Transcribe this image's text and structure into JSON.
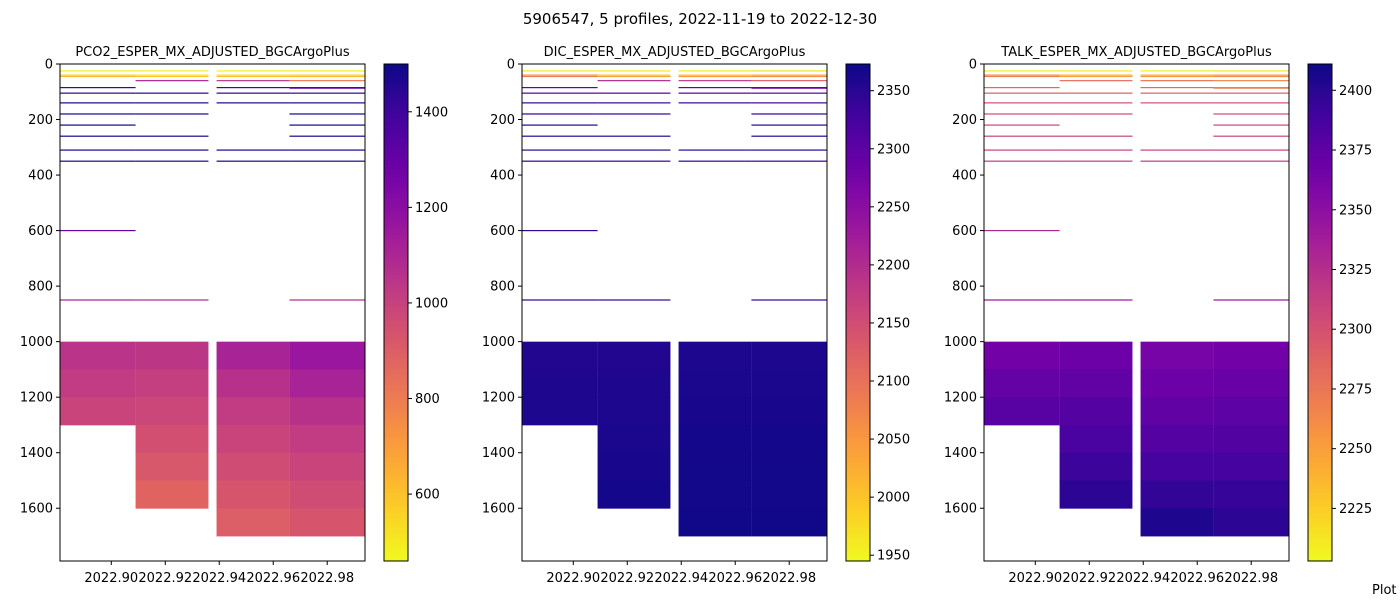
{
  "suptitle": "5906547, 5 profiles, 2022-11-19 to 2022-12-30",
  "footer_text": "Plot",
  "chart_data": [
    {
      "type": "heatmap",
      "title": "PCO2_ESPER_MX_ADJUSTED_BGCArgoPlus",
      "xlabel": "",
      "ylabel": "",
      "colormap": "plasma_r",
      "clim": [
        460,
        1500
      ],
      "colorbar_ticks": [
        600,
        800,
        1000,
        1200,
        1400
      ],
      "xlim": [
        2022.881,
        2022.994
      ],
      "ylim": [
        1790,
        0
      ],
      "xticks": [
        2022.9,
        2022.92,
        2022.94,
        2022.96,
        2022.98
      ],
      "xtick_labels": [
        "2022.90",
        "2022.92",
        "2022.94",
        "2022.96",
        "2022.98"
      ],
      "yticks": [
        0,
        200,
        400,
        600,
        800,
        1000,
        1200,
        1400,
        1600
      ],
      "profiles": [
        {
          "x0": 2022.881,
          "x1": 2022.909
        },
        {
          "x0": 2022.909,
          "x1": 2022.936
        },
        {
          "x0": 2022.939,
          "x1": 2022.966
        },
        {
          "x0": 2022.966,
          "x1": 2022.994
        }
      ],
      "lines": [
        {
          "depth": 25,
          "values": [
            480,
            482,
            478,
            485
          ]
        },
        {
          "depth": 40,
          "values": [
            560,
            520,
            540,
            560
          ]
        },
        {
          "depth": 45,
          "values": [
            620,
            590,
            600,
            610
          ]
        },
        {
          "depth": 60,
          "values": [
            null,
            1100,
            1050,
            800
          ]
        },
        {
          "depth": 85,
          "values": [
            1400,
            null,
            1350,
            1380
          ]
        },
        {
          "depth": 87,
          "values": [
            null,
            null,
            null,
            1300
          ]
        },
        {
          "depth": 105,
          "values": [
            1450,
            1440,
            1430,
            1420
          ]
        },
        {
          "depth": 140,
          "values": [
            1480,
            1470,
            1470,
            1460
          ]
        },
        {
          "depth": 180,
          "values": [
            1480,
            1480,
            null,
            1480
          ]
        },
        {
          "depth": 220,
          "values": [
            1490,
            null,
            null,
            1490
          ]
        },
        {
          "depth": 260,
          "values": [
            1490,
            1490,
            null,
            1490
          ]
        },
        {
          "depth": 310,
          "values": [
            1480,
            1480,
            1480,
            1480
          ]
        },
        {
          "depth": 350,
          "values": [
            1470,
            1470,
            1470,
            1470
          ]
        },
        {
          "depth": 600,
          "values": [
            1300,
            null,
            null,
            null
          ]
        },
        {
          "depth": 850,
          "values": [
            1120,
            1100,
            null,
            1080
          ]
        }
      ],
      "blocks": [
        {
          "profile": 0,
          "depths": [
            [
              1000,
              1100
            ],
            [
              1100,
              1200
            ],
            [
              1200,
              1300
            ]
          ],
          "values": [
            1050,
            1020,
            990
          ]
        },
        {
          "profile": 1,
          "depths": [
            [
              1000,
              1100
            ],
            [
              1100,
              1200
            ],
            [
              1200,
              1300
            ],
            [
              1300,
              1400
            ],
            [
              1400,
              1500
            ],
            [
              1500,
              1600
            ]
          ],
          "values": [
            1040,
            1010,
            980,
            950,
            920,
            880
          ]
        },
        {
          "profile": 2,
          "depths": [
            [
              1000,
              1100
            ],
            [
              1100,
              1200
            ],
            [
              1200,
              1300
            ],
            [
              1300,
              1400
            ],
            [
              1400,
              1500
            ],
            [
              1500,
              1600
            ],
            [
              1600,
              1700
            ]
          ],
          "values": [
            1110,
            1060,
            1020,
            990,
            960,
            930,
            900
          ]
        },
        {
          "profile": 3,
          "depths": [
            [
              1000,
              1100
            ],
            [
              1100,
              1200
            ],
            [
              1200,
              1300
            ],
            [
              1300,
              1400
            ],
            [
              1400,
              1500
            ],
            [
              1500,
              1600
            ],
            [
              1600,
              1700
            ]
          ],
          "values": [
            1160,
            1110,
            1060,
            1020,
            990,
            960,
            930
          ]
        }
      ]
    },
    {
      "type": "heatmap",
      "title": "DIC_ESPER_MX_ADJUSTED_BGCArgoPlus",
      "xlabel": "",
      "ylabel": "",
      "colormap": "plasma_r",
      "clim": [
        1945,
        2373
      ],
      "colorbar_ticks": [
        1950,
        2000,
        2050,
        2100,
        2150,
        2200,
        2250,
        2300,
        2350
      ],
      "xlim": [
        2022.881,
        2022.994
      ],
      "ylim": [
        1790,
        0
      ],
      "xticks": [
        2022.9,
        2022.92,
        2022.94,
        2022.96,
        2022.98
      ],
      "xtick_labels": [
        "2022.90",
        "2022.92",
        "2022.94",
        "2022.96",
        "2022.98"
      ],
      "yticks": [
        0,
        200,
        400,
        600,
        800,
        1000,
        1200,
        1400,
        1600
      ],
      "profiles": [
        {
          "x0": 2022.881,
          "x1": 2022.909
        },
        {
          "x0": 2022.909,
          "x1": 2022.936
        },
        {
          "x0": 2022.939,
          "x1": 2022.966
        },
        {
          "x0": 2022.966,
          "x1": 2022.994
        }
      ],
      "lines": [
        {
          "depth": 25,
          "values": [
            1960,
            1962,
            1958,
            1965
          ]
        },
        {
          "depth": 40,
          "values": [
            2060,
            2000,
            2010,
            2040
          ]
        },
        {
          "depth": 45,
          "values": [
            2080,
            2040,
            2050,
            2060
          ]
        },
        {
          "depth": 60,
          "values": [
            null,
            2200,
            2180,
            2120
          ]
        },
        {
          "depth": 85,
          "values": [
            2300,
            null,
            2290,
            2300
          ]
        },
        {
          "depth": 87,
          "values": [
            null,
            null,
            null,
            2280
          ]
        },
        {
          "depth": 105,
          "values": [
            2320,
            2320,
            2315,
            2310
          ]
        },
        {
          "depth": 140,
          "values": [
            2340,
            2335,
            2335,
            2330
          ]
        },
        {
          "depth": 180,
          "values": [
            2345,
            2345,
            null,
            2345
          ]
        },
        {
          "depth": 220,
          "values": [
            2350,
            null,
            null,
            2350
          ]
        },
        {
          "depth": 260,
          "values": [
            2352,
            2352,
            null,
            2352
          ]
        },
        {
          "depth": 310,
          "values": [
            2350,
            2350,
            2350,
            2350
          ]
        },
        {
          "depth": 350,
          "values": [
            2348,
            2348,
            2348,
            2348
          ]
        },
        {
          "depth": 600,
          "values": [
            2340,
            null,
            null,
            null
          ]
        },
        {
          "depth": 850,
          "values": [
            2345,
            2345,
            null,
            2345
          ]
        }
      ],
      "blocks": [
        {
          "profile": 0,
          "depths": [
            [
              1000,
              1100
            ],
            [
              1100,
              1200
            ],
            [
              1200,
              1300
            ]
          ],
          "values": [
            2355,
            2358,
            2360
          ]
        },
        {
          "profile": 1,
          "depths": [
            [
              1000,
              1100
            ],
            [
              1100,
              1200
            ],
            [
              1200,
              1300
            ],
            [
              1300,
              1400
            ],
            [
              1400,
              1500
            ],
            [
              1500,
              1600
            ]
          ],
          "values": [
            2355,
            2358,
            2360,
            2362,
            2364,
            2366
          ]
        },
        {
          "profile": 2,
          "depths": [
            [
              1000,
              1100
            ],
            [
              1100,
              1200
            ],
            [
              1200,
              1300
            ],
            [
              1300,
              1400
            ],
            [
              1400,
              1500
            ],
            [
              1500,
              1600
            ],
            [
              1600,
              1700
            ]
          ],
          "values": [
            2360,
            2362,
            2364,
            2366,
            2368,
            2369,
            2370
          ]
        },
        {
          "profile": 3,
          "depths": [
            [
              1000,
              1100
            ],
            [
              1100,
              1200
            ],
            [
              1200,
              1300
            ],
            [
              1300,
              1400
            ],
            [
              1400,
              1500
            ],
            [
              1500,
              1600
            ],
            [
              1600,
              1700
            ]
          ],
          "values": [
            2360,
            2362,
            2364,
            2366,
            2368,
            2369,
            2370
          ]
        }
      ]
    },
    {
      "type": "heatmap",
      "title": "TALK_ESPER_MX_ADJUSTED_BGCArgoPlus",
      "xlabel": "",
      "ylabel": "",
      "colormap": "plasma_r",
      "clim": [
        2203,
        2411
      ],
      "colorbar_ticks": [
        2225,
        2250,
        2275,
        2300,
        2325,
        2350,
        2375,
        2400
      ],
      "xlim": [
        2022.881,
        2022.994
      ],
      "ylim": [
        1790,
        0
      ],
      "xticks": [
        2022.9,
        2022.92,
        2022.94,
        2022.96,
        2022.98
      ],
      "xtick_labels": [
        "2022.90",
        "2022.92",
        "2022.94",
        "2022.96",
        "2022.98"
      ],
      "yticks": [
        0,
        200,
        400,
        600,
        800,
        1000,
        1200,
        1400,
        1600
      ],
      "profiles": [
        {
          "x0": 2022.881,
          "x1": 2022.909
        },
        {
          "x0": 2022.909,
          "x1": 2022.936
        },
        {
          "x0": 2022.939,
          "x1": 2022.966
        },
        {
          "x0": 2022.966,
          "x1": 2022.994
        }
      ],
      "lines": [
        {
          "depth": 25,
          "values": [
            2208,
            2210,
            2207,
            2212
          ]
        },
        {
          "depth": 40,
          "values": [
            2262,
            2240,
            2245,
            2255
          ]
        },
        {
          "depth": 45,
          "values": [
            2270,
            2250,
            2255,
            2262
          ]
        },
        {
          "depth": 60,
          "values": [
            null,
            2280,
            2275,
            2265
          ]
        },
        {
          "depth": 85,
          "values": [
            2285,
            null,
            2282,
            2268
          ]
        },
        {
          "depth": 87,
          "values": [
            null,
            null,
            null,
            2272
          ]
        },
        {
          "depth": 105,
          "values": [
            2292,
            2292,
            2290,
            2290
          ]
        },
        {
          "depth": 140,
          "values": [
            2300,
            2300,
            2300,
            2300
          ]
        },
        {
          "depth": 180,
          "values": [
            2305,
            2305,
            null,
            2305
          ]
        },
        {
          "depth": 220,
          "values": [
            2308,
            null,
            null,
            2308
          ]
        },
        {
          "depth": 260,
          "values": [
            2310,
            2310,
            null,
            2310
          ]
        },
        {
          "depth": 310,
          "values": [
            2312,
            2312,
            2312,
            2312
          ]
        },
        {
          "depth": 350,
          "values": [
            2314,
            2314,
            2314,
            2314
          ]
        },
        {
          "depth": 600,
          "values": [
            2330,
            null,
            null,
            null
          ]
        },
        {
          "depth": 850,
          "values": [
            2345,
            2345,
            null,
            2345
          ]
        }
      ],
      "blocks": [
        {
          "profile": 0,
          "depths": [
            [
              1000,
              1100
            ],
            [
              1100,
              1200
            ],
            [
              1200,
              1300
            ]
          ],
          "values": [
            2365,
            2372,
            2378
          ]
        },
        {
          "profile": 1,
          "depths": [
            [
              1000,
              1100
            ],
            [
              1100,
              1200
            ],
            [
              1200,
              1300
            ],
            [
              1300,
              1400
            ],
            [
              1400,
              1500
            ],
            [
              1500,
              1600
            ]
          ],
          "values": [
            2368,
            2374,
            2380,
            2386,
            2392,
            2398
          ]
        },
        {
          "profile": 2,
          "depths": [
            [
              1000,
              1100
            ],
            [
              1100,
              1200
            ],
            [
              1200,
              1300
            ],
            [
              1300,
              1400
            ],
            [
              1400,
              1500
            ],
            [
              1500,
              1600
            ],
            [
              1600,
              1700
            ]
          ],
          "values": [
            2362,
            2368,
            2374,
            2380,
            2388,
            2396,
            2404
          ]
        },
        {
          "profile": 3,
          "depths": [
            [
              1000,
              1100
            ],
            [
              1100,
              1200
            ],
            [
              1200,
              1300
            ],
            [
              1300,
              1400
            ],
            [
              1400,
              1500
            ],
            [
              1500,
              1600
            ],
            [
              1600,
              1700
            ]
          ],
          "values": [
            2365,
            2370,
            2376,
            2382,
            2388,
            2394,
            2398
          ]
        }
      ]
    }
  ]
}
